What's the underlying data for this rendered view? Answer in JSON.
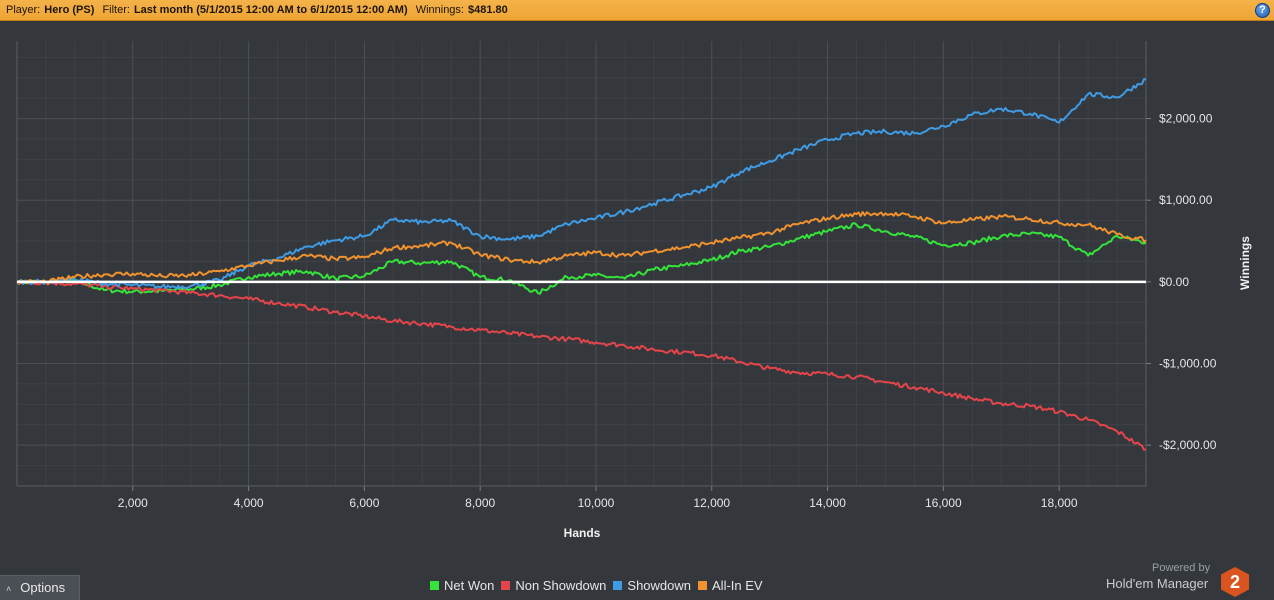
{
  "header": {
    "player_label": "Player:",
    "player_value": "Hero (PS)",
    "filter_label": "Filter:",
    "filter_value": "Last month (5/1/2015 12:00 AM to 6/1/2015 12:00 AM)",
    "winnings_label": "Winnings:",
    "winnings_value": "$481.80",
    "help_symbol": "?"
  },
  "options": {
    "label": "Options",
    "arrow": "˄"
  },
  "branding": {
    "powered_by": "Powered by",
    "product": "Hold'em Manager",
    "logo_text": "2"
  },
  "colors": {
    "header_bg": "#f0a83a",
    "background": "#34373c",
    "grid": "#4b4f55",
    "zero_line": "#ffffff",
    "net_won": "#35e43a",
    "non_showdown": "#e4454a",
    "showdown": "#3e9be4",
    "all_in_ev": "#f0922e"
  },
  "chart_data": {
    "type": "line",
    "xlabel": "Hands",
    "ylabel": "Winnings",
    "xlim": [
      0,
      19500
    ],
    "ylim": [
      -2500,
      2950
    ],
    "x_ticks": [
      2000,
      4000,
      6000,
      8000,
      10000,
      12000,
      14000,
      16000,
      18000
    ],
    "x_tick_labels": [
      "2,000",
      "4,000",
      "6,000",
      "8,000",
      "10,000",
      "12,000",
      "14,000",
      "16,000",
      "18,000"
    ],
    "y_ticks": [
      2000,
      1000,
      0,
      -1000,
      -2000
    ],
    "y_tick_labels": [
      "$2,000.00",
      "$1,000.00",
      "$0.00",
      "-$1,000.00",
      "-$2,000.00"
    ],
    "grid": true,
    "legend_position": "bottom",
    "x": [
      0,
      500,
      1000,
      1500,
      2000,
      2500,
      3000,
      3500,
      4000,
      4500,
      5000,
      5500,
      6000,
      6500,
      7000,
      7500,
      8000,
      8500,
      9000,
      9500,
      10000,
      10500,
      11000,
      11500,
      12000,
      12500,
      13000,
      13500,
      14000,
      14500,
      15000,
      15500,
      16000,
      16500,
      17000,
      17500,
      18000,
      18500,
      19000,
      19500
    ],
    "series": [
      {
        "name": "Net Won",
        "color": "#35e43a",
        "values": [
          0,
          0,
          20,
          -100,
          -120,
          -110,
          -90,
          -40,
          60,
          100,
          130,
          40,
          70,
          250,
          230,
          250,
          60,
          20,
          -140,
          60,
          80,
          40,
          150,
          200,
          270,
          380,
          430,
          530,
          620,
          700,
          620,
          550,
          450,
          480,
          560,
          590,
          550,
          320,
          560,
          480
        ]
      },
      {
        "name": "Non Showdown",
        "color": "#e4454a",
        "values": [
          0,
          -10,
          -25,
          -55,
          -85,
          -105,
          -135,
          -165,
          -210,
          -260,
          -310,
          -370,
          -420,
          -480,
          -510,
          -550,
          -590,
          -630,
          -670,
          -700,
          -740,
          -780,
          -830,
          -860,
          -900,
          -980,
          -1060,
          -1110,
          -1130,
          -1160,
          -1230,
          -1290,
          -1360,
          -1430,
          -1490,
          -1520,
          -1590,
          -1690,
          -1830,
          -2050
        ]
      },
      {
        "name": "Showdown",
        "color": "#3e9be4",
        "values": [
          0,
          0,
          30,
          -20,
          -40,
          -60,
          -50,
          20,
          200,
          290,
          430,
          510,
          560,
          760,
          730,
          750,
          560,
          520,
          560,
          710,
          780,
          860,
          960,
          1060,
          1160,
          1350,
          1480,
          1620,
          1740,
          1820,
          1840,
          1820,
          1910,
          2050,
          2120,
          2060,
          1950,
          2300,
          2260,
          2480
        ]
      },
      {
        "name": "All-In EV",
        "color": "#f0922e",
        "values": [
          0,
          0,
          60,
          90,
          100,
          70,
          80,
          130,
          200,
          260,
          320,
          280,
          300,
          420,
          440,
          480,
          330,
          270,
          240,
          320,
          360,
          320,
          380,
          420,
          480,
          540,
          600,
          710,
          780,
          830,
          840,
          800,
          720,
          760,
          800,
          770,
          720,
          700,
          580,
          510
        ]
      }
    ]
  }
}
